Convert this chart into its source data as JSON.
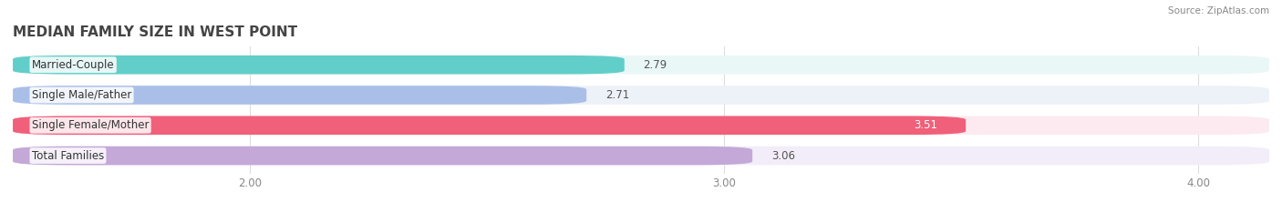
{
  "title": "MEDIAN FAMILY SIZE IN WEST POINT",
  "source": "Source: ZipAtlas.com",
  "categories": [
    "Married-Couple",
    "Single Male/Father",
    "Single Female/Mother",
    "Total Families"
  ],
  "values": [
    2.79,
    2.71,
    3.51,
    3.06
  ],
  "bar_colors": [
    "#62ceca",
    "#aabfe8",
    "#f0607a",
    "#c4a8d8"
  ],
  "bar_bg_colors": [
    "#eaf7f7",
    "#edf1f8",
    "#fdeaf0",
    "#f2edf8"
  ],
  "xlim": [
    1.5,
    4.15
  ],
  "xticks": [
    2.0,
    3.0,
    4.0
  ],
  "xtick_labels": [
    "2.00",
    "3.00",
    "4.00"
  ],
  "label_fontsize": 8.5,
  "value_fontsize": 8.5,
  "title_fontsize": 11,
  "background_color": "#ffffff",
  "bar_height": 0.62,
  "value_label_color_normal": "#555555",
  "value_label_color_white": "#ffffff"
}
